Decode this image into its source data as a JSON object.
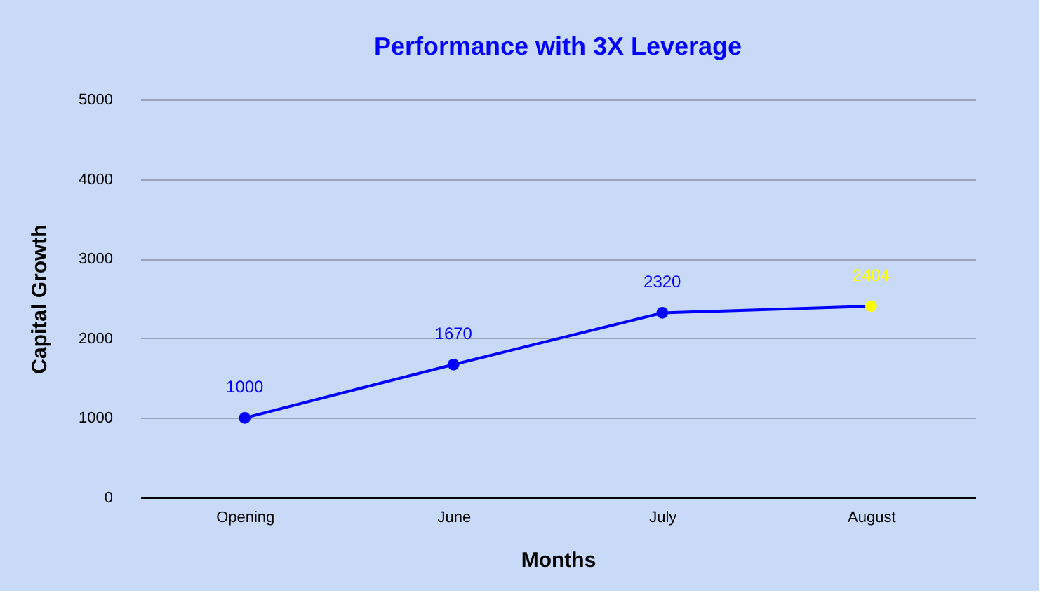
{
  "chart_data": {
    "type": "line",
    "title": "Performance with 3X Leverage",
    "xlabel": "Months",
    "ylabel": "Capital Growth",
    "categories": [
      "Opening",
      "June",
      "July",
      "August"
    ],
    "series": [
      {
        "color": "#0000ff",
        "colors": [
          "#0000ff",
          "#0000ff",
          "#0000ff",
          "#ffff00"
        ],
        "values": [
          1000,
          1670,
          2320,
          2404
        ]
      }
    ],
    "ylim": [
      0,
      5000
    ],
    "yticks": [
      0,
      1000,
      2000,
      3000,
      4000,
      5000
    ],
    "grid": "y",
    "marker": "circle",
    "line_style": "solid",
    "data_labels": true
  }
}
